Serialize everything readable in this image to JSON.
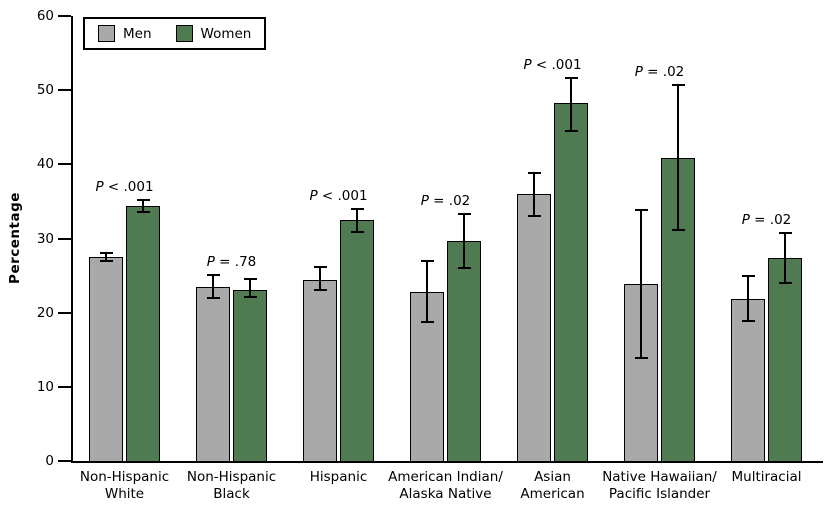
{
  "chart_data": {
    "type": "bar",
    "title": "",
    "xlabel": "",
    "ylabel": "Percentage",
    "ylim": [
      0,
      60
    ],
    "yticks": [
      0,
      10,
      20,
      30,
      40,
      50,
      60
    ],
    "grid": false,
    "legend_position": "top-left",
    "error_bars": true,
    "categories": [
      [
        "Non-Hispanic",
        "White"
      ],
      [
        "Non-Hispanic",
        "Black"
      ],
      [
        "Hispanic"
      ],
      [
        "American Indian/",
        "Alaska Native"
      ],
      [
        "Asian",
        "American"
      ],
      [
        "Native Hawaiian/",
        "Pacific Islander"
      ],
      [
        "Multiracial"
      ]
    ],
    "series": [
      {
        "name": "Men",
        "color": "#a9a9a9",
        "values": [
          27.5,
          23.5,
          24.4,
          22.8,
          36.0,
          23.8,
          21.9
        ],
        "ci_low": [
          27.0,
          22.0,
          23.0,
          18.8,
          33.1,
          13.9,
          18.9
        ],
        "ci_high": [
          28.1,
          25.1,
          26.1,
          27.0,
          38.8,
          33.8,
          24.9
        ]
      },
      {
        "name": "Women",
        "color": "#507b52",
        "values": [
          34.4,
          23.0,
          32.5,
          29.6,
          48.3,
          40.9,
          27.4
        ],
        "ci_low": [
          33.6,
          22.1,
          30.9,
          26.0,
          44.5,
          31.1,
          24.0
        ],
        "ci_high": [
          35.2,
          24.5,
          34.0,
          33.3,
          51.7,
          50.7,
          30.8
        ]
      }
    ],
    "p_labels": [
      "P < .001",
      "P = .78",
      "P < .001",
      "P = .02",
      "P < .001",
      "P = .02",
      "P = .02"
    ]
  }
}
